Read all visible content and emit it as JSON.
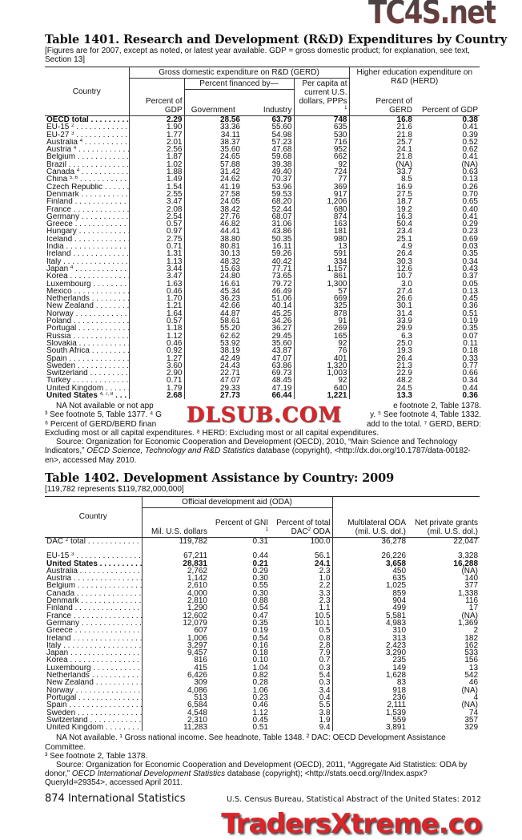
{
  "table1401": {
    "title": "Table 1401. Research and Development (R&D) Expenditures by Country",
    "headnote": "[Figures are for 2007, except as noted, or latest year available. GDP = gross domestic product; for explanation, see text, Section 13]",
    "headers": {
      "country": "Country",
      "gerd": "Gross domestic expenditure on R&D (GERD)",
      "financed_by": "Percent financed by—",
      "pct_gdp": "Percent of GDP",
      "government": "Government",
      "industry": "Industry",
      "per_capita": "Per capita at current U.S. dollars, PPPs",
      "per_capita_sup": "1",
      "herd": "Higher education expenditure on R&D (HERD)",
      "herd_pct_gerd": "Percent of GERD",
      "herd_pct_gdp": "Percent of GDP"
    },
    "rows": [
      {
        "country": "OECD total",
        "sup": "",
        "bold": true,
        "v": [
          "2.29",
          "28.56",
          "63.79",
          "748",
          "16.8",
          "0.38"
        ]
      },
      {
        "country": "EU-15",
        "sup": "2",
        "v": [
          "1.90",
          "33.36",
          "55.60",
          "635",
          "21.6",
          "0.41"
        ]
      },
      {
        "country": "EU-27",
        "sup": "3",
        "v": [
          "1.77",
          "34.11",
          "54.98",
          "530",
          "21.8",
          "0.39"
        ]
      },
      {
        "country": "Australia",
        "sup": "4",
        "v": [
          "2.01",
          "38.37",
          "57.23",
          "716",
          "25.7",
          "0.52"
        ]
      },
      {
        "country": "Austria",
        "sup": "4",
        "v": [
          "2.56",
          "35.60",
          "47.68",
          "952",
          "24.1",
          "0.62"
        ]
      },
      {
        "country": "Belgium",
        "sup": "",
        "v": [
          "1.87",
          "24.65",
          "59.68",
          "662",
          "21.8",
          "0.41"
        ]
      },
      {
        "country": "Brazil",
        "sup": "",
        "v": [
          "1.02",
          "57.88",
          "39.38",
          "92",
          "(NA)",
          "(NA)"
        ]
      },
      {
        "country": "Canada",
        "sup": "4",
        "v": [
          "1.88",
          "31.42",
          "49.40",
          "724",
          "33.7",
          "0.63"
        ]
      },
      {
        "country": "China",
        "sup": "5, 6",
        "v": [
          "1.49",
          "24.62",
          "70.37",
          "77",
          "8.5",
          "0.13"
        ]
      },
      {
        "country": "Czech Republic",
        "sup": "",
        "v": [
          "1.54",
          "41.19",
          "53.96",
          "369",
          "16.9",
          "0.26"
        ]
      },
      {
        "country": "Denmark",
        "sup": "",
        "v": [
          "2.55",
          "27.58",
          "59.53",
          "917",
          "27.5",
          "0.70"
        ]
      },
      {
        "country": "Finland",
        "sup": "",
        "v": [
          "3.47",
          "24.05",
          "68.20",
          "1,206",
          "18.7",
          "0.65"
        ]
      },
      {
        "country": "France",
        "sup": "",
        "v": [
          "2.08",
          "38.42",
          "52.44",
          "680",
          "19.2",
          "0.40"
        ]
      },
      {
        "country": "Germany",
        "sup": "",
        "v": [
          "2.54",
          "27.76",
          "68.07",
          "874",
          "16.3",
          "0.41"
        ]
      },
      {
        "country": "Greece",
        "sup": "",
        "v": [
          "0.57",
          "46.82",
          "31.06",
          "163",
          "50.4",
          "0.29"
        ]
      },
      {
        "country": "Hungary",
        "sup": "",
        "v": [
          "0.97",
          "44.41",
          "43.86",
          "181",
          "23.4",
          "0.23"
        ]
      },
      {
        "country": "Iceland",
        "sup": "",
        "v": [
          "2.75",
          "38.80",
          "50.35",
          "980",
          "25.1",
          "0.69"
        ]
      },
      {
        "country": "India",
        "sup": "",
        "v": [
          "0.71",
          "80.81",
          "16.11",
          "13",
          "4.9",
          "0.03"
        ]
      },
      {
        "country": "Ireland",
        "sup": "",
        "v": [
          "1.31",
          "30.13",
          "59.26",
          "591",
          "26.4",
          "0.35"
        ]
      },
      {
        "country": "Italy",
        "sup": "",
        "v": [
          "1.13",
          "48.32",
          "40.42",
          "334",
          "30.3",
          "0.34"
        ]
      },
      {
        "country": "Japan",
        "sup": "4",
        "v": [
          "3.44",
          "15.63",
          "77.71",
          "1,157",
          "12.6",
          "0.43"
        ]
      },
      {
        "country": "Korea",
        "sup": "",
        "v": [
          "3.47",
          "24.80",
          "73.65",
          "861",
          "10.7",
          "0.37"
        ]
      },
      {
        "country": "Luxembourg",
        "sup": "",
        "v": [
          "1.63",
          "16.61",
          "79.72",
          "1,300",
          "3.0",
          "0.05"
        ]
      },
      {
        "country": "Mexico",
        "sup": "",
        "v": [
          "0.46",
          "45.34",
          "46.49",
          "57",
          "27.4",
          "0.13"
        ]
      },
      {
        "country": "Netherlands",
        "sup": "",
        "v": [
          "1.70",
          "36.23",
          "51.06",
          "669",
          "26.6",
          "0.45"
        ]
      },
      {
        "country": "New Zealand",
        "sup": "",
        "v": [
          "1.21",
          "42.66",
          "40.14",
          "325",
          "30.1",
          "0.36"
        ]
      },
      {
        "country": "Norway",
        "sup": "",
        "v": [
          "1.64",
          "44.87",
          "45.25",
          "878",
          "31.4",
          "0.51"
        ]
      },
      {
        "country": "Poland",
        "sup": "",
        "v": [
          "0.57",
          "58.61",
          "34.26",
          "91",
          "33.9",
          "0.19"
        ]
      },
      {
        "country": "Portugal",
        "sup": "",
        "v": [
          "1.18",
          "55.20",
          "36.27",
          "269",
          "29.9",
          "0.35"
        ]
      },
      {
        "country": "Russia",
        "sup": "",
        "v": [
          "1.12",
          "62.62",
          "29.45",
          "165",
          "6.3",
          "0.07"
        ]
      },
      {
        "country": "Slovakia",
        "sup": "",
        "v": [
          "0.46",
          "53.92",
          "35.60",
          "92",
          "25.0",
          "0.11"
        ]
      },
      {
        "country": "South Africa",
        "sup": "",
        "v": [
          "0.92",
          "38.19",
          "43.87",
          "76",
          "19.3",
          "0.18"
        ]
      },
      {
        "country": "Spain",
        "sup": "",
        "v": [
          "1.27",
          "42.49",
          "47.07",
          "401",
          "26.4",
          "0.33"
        ]
      },
      {
        "country": "Sweden",
        "sup": "",
        "v": [
          "3.60",
          "24.43",
          "63.86",
          "1,320",
          "21.3",
          "0.77"
        ]
      },
      {
        "country": "Switzerland",
        "sup": "",
        "v": [
          "2.90",
          "22.71",
          "69.73",
          "1,003",
          "22.9",
          "0.66"
        ]
      },
      {
        "country": "Turkey",
        "sup": "",
        "v": [
          "0.71",
          "47.07",
          "48.45",
          "92",
          "48.2",
          "0.34"
        ]
      },
      {
        "country": "United Kingdom",
        "sup": "",
        "v": [
          "1.79",
          "29.33",
          "47.19",
          "640",
          "24.5",
          "0.44"
        ]
      },
      {
        "country": "United States",
        "sup": "4, 7, 8",
        "bold": true,
        "v": [
          "2.68",
          "27.73",
          "66.44",
          "1,221",
          "13.3",
          "0.36"
        ]
      }
    ],
    "notes": {
      "line1_left": "NA Not available or not app",
      "line1_right": "e footnote 2, Table 1378.",
      "line2_left": "³ See footnote 5, Table 1377. ⁴ G",
      "line2_right": "y. ⁵ See footnote 4, Table 1332.",
      "line3_left": "⁶ Percent of GERD/BERD finan",
      "line3_right": "add to the total. ⁷ GERD, BERD:",
      "line4": "Excluding most or all capital expenditures. ⁸ HERD: Excluding most or all capital expenditures.",
      "source_prefix": "Source: Organization for Economic Cooperation and Development (OECD), 2010, “Main Science and Technology Indicators,” ",
      "source_italic": "OECD Science, Technology and R&D Statistics",
      "source_suffix": " database (copyright), <http://dx.doi.org/10.1787/data-00182-en>, accessed May 2010."
    }
  },
  "table1402": {
    "title": "Table 1402. Development Assistance by Country: 2009",
    "headnote": "[119,782 represents $119,782,000,000]",
    "headers": {
      "country": "Country",
      "oda": "Official development aid (ODA)",
      "mil_usd": "Mil. U.S. dollars",
      "pct_gni": "Percent of GNI",
      "pct_gni_sup": "1",
      "pct_dac_a": "Percent of total DAC",
      "pct_dac_sup": "2",
      "pct_dac_b": " ODA",
      "multilateral": "Multilateral ODA (mil. U.S. dol.)",
      "net_private": "Net private grants (mil. U.S. dol.)"
    },
    "rows": [
      {
        "country": "DAC",
        "sup": "2",
        "suffix": " total",
        "gap": true,
        "v": [
          "119,782",
          "0.31",
          "100.0",
          "36,278",
          "22,047"
        ]
      },
      {
        "country": "EU-15",
        "sup": "3",
        "v": [
          "67,211",
          "0.44",
          "56.1",
          "26,226",
          "3,328"
        ]
      },
      {
        "country": "United States",
        "sup": "",
        "bold": true,
        "v": [
          "28,831",
          "0.21",
          "24.1",
          "3,658",
          "16,288"
        ]
      },
      {
        "country": "Australia",
        "sup": "",
        "v": [
          "2,762",
          "0.29",
          "2.3",
          "450",
          "(NA)"
        ]
      },
      {
        "country": "Austria",
        "sup": "",
        "v": [
          "1,142",
          "0.30",
          "1.0",
          "635",
          "140"
        ]
      },
      {
        "country": "Belgium",
        "sup": "",
        "v": [
          "2,610",
          "0.55",
          "2.2",
          "1,025",
          "377"
        ]
      },
      {
        "country": "Canada",
        "sup": "",
        "v": [
          "4,000",
          "0.30",
          "3.3",
          "859",
          "1,338"
        ]
      },
      {
        "country": "Denmark",
        "sup": "",
        "v": [
          "2,810",
          "0.88",
          "2.3",
          "904",
          "116"
        ]
      },
      {
        "country": "Finland",
        "sup": "",
        "v": [
          "1,290",
          "0.54",
          "1.1",
          "499",
          "17"
        ]
      },
      {
        "country": "France",
        "sup": "",
        "v": [
          "12,602",
          "0.47",
          "10.5",
          "5,581",
          "(NA)"
        ]
      },
      {
        "country": "Germany",
        "sup": "",
        "v": [
          "12,079",
          "0.35",
          "10.1",
          "4,983",
          "1,369"
        ]
      },
      {
        "country": "Greece",
        "sup": "",
        "v": [
          "607",
          "0.19",
          "0.5",
          "310",
          "2"
        ]
      },
      {
        "country": "Ireland",
        "sup": "",
        "v": [
          "1,006",
          "0.54",
          "0.8",
          "313",
          "182"
        ]
      },
      {
        "country": "Italy",
        "sup": "",
        "v": [
          "3,297",
          "0.16",
          "2.8",
          "2,423",
          "162"
        ]
      },
      {
        "country": "Japan",
        "sup": "",
        "v": [
          "9,457",
          "0.18",
          "7.9",
          "3,290",
          "533"
        ]
      },
      {
        "country": "Korea",
        "sup": "",
        "v": [
          "816",
          "0.10",
          "0.7",
          "235",
          "156"
        ]
      },
      {
        "country": "Luxembourg",
        "sup": "",
        "v": [
          "415",
          "1.04",
          "0.3",
          "149",
          "13"
        ]
      },
      {
        "country": "Netherlands",
        "sup": "",
        "v": [
          "6,426",
          "0.82",
          "5.4",
          "1,628",
          "542"
        ]
      },
      {
        "country": "New Zealand",
        "sup": "",
        "v": [
          "309",
          "0.28",
          "0.3",
          "83",
          "46"
        ]
      },
      {
        "country": "Norway",
        "sup": "",
        "v": [
          "4,086",
          "1.06",
          "3.4",
          "918",
          "(NA)"
        ]
      },
      {
        "country": "Portugal",
        "sup": "",
        "v": [
          "513",
          "0.23",
          "0.4",
          "236",
          "4"
        ]
      },
      {
        "country": "Spain",
        "sup": "",
        "v": [
          "6,584",
          "0.46",
          "5.5",
          "2,111",
          "(NA)"
        ]
      },
      {
        "country": "Sweden",
        "sup": "",
        "v": [
          "4,548",
          "1.12",
          "3.8",
          "1,539",
          "74"
        ]
      },
      {
        "country": "Switzerland",
        "sup": "",
        "v": [
          "2,310",
          "0.45",
          "1.9",
          "559",
          "357"
        ]
      },
      {
        "country": "United Kingdom",
        "sup": "",
        "v": [
          "11,283",
          "0.51",
          "9.4",
          "3,891",
          "329"
        ]
      }
    ],
    "notes": {
      "line1": "NA Not available. ¹ Gross national income. See headnote, Table 1348. ² DAC: OECD Development Assistance Committee.",
      "line2": "³ See footnote 2, Table 1378.",
      "source_prefix": "Source: Organization for Economic Cooperation and Development (OECD), 2011, “Aggregate Aid Statistics: ODA by donor,” ",
      "source_italic": "OECD International Development Statistics",
      "source_suffix": " database (copyright); <http://stats.oecd.org//Index.aspx?QueryId=29354>, accessed April 2011."
    }
  },
  "footer": {
    "page_label": "874  International Statistics",
    "publication": "U.S. Census Bureau, Statistical Abstract of the United States: 2012"
  },
  "watermarks": {
    "top": "TC4S.net",
    "middle": "DLSUB.COM",
    "bottom": "TradersXtreme.co"
  }
}
